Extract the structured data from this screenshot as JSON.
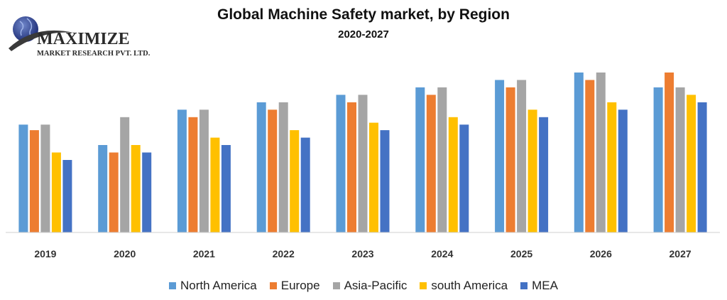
{
  "logo": {
    "name": "MAXIMIZE",
    "tagline": "MARKET RESEARCH PVT. LTD."
  },
  "chart_data": {
    "type": "bar",
    "title": "Global Machine Safety market, by Region",
    "subtitle": "2020-2027",
    "xlabel": "",
    "ylabel": "",
    "ylim": [
      0,
      100
    ],
    "grid": false,
    "legend_position": "bottom",
    "categories": [
      "2019",
      "2020",
      "2021",
      "2022",
      "2023",
      "2024",
      "2025",
      "2026",
      "2027"
    ],
    "series": [
      {
        "name": "North America",
        "color": "#5B9BD5",
        "values": [
          58,
          47,
          66,
          70,
          74,
          78,
          82,
          86,
          78
        ]
      },
      {
        "name": "Europe",
        "color": "#ED7D31",
        "values": [
          55,
          43,
          62,
          66,
          70,
          74,
          78,
          82,
          86
        ]
      },
      {
        "name": "Asia-Pacific",
        "color": "#A5A5A5",
        "values": [
          58,
          62,
          66,
          70,
          74,
          78,
          82,
          86,
          78
        ]
      },
      {
        "name": "south America",
        "color": "#FFC000",
        "values": [
          43,
          47,
          51,
          55,
          59,
          62,
          66,
          70,
          74
        ]
      },
      {
        "name": "MEA",
        "color": "#4472C4",
        "values": [
          39,
          43,
          47,
          51,
          55,
          58,
          62,
          66,
          70
        ]
      }
    ]
  }
}
